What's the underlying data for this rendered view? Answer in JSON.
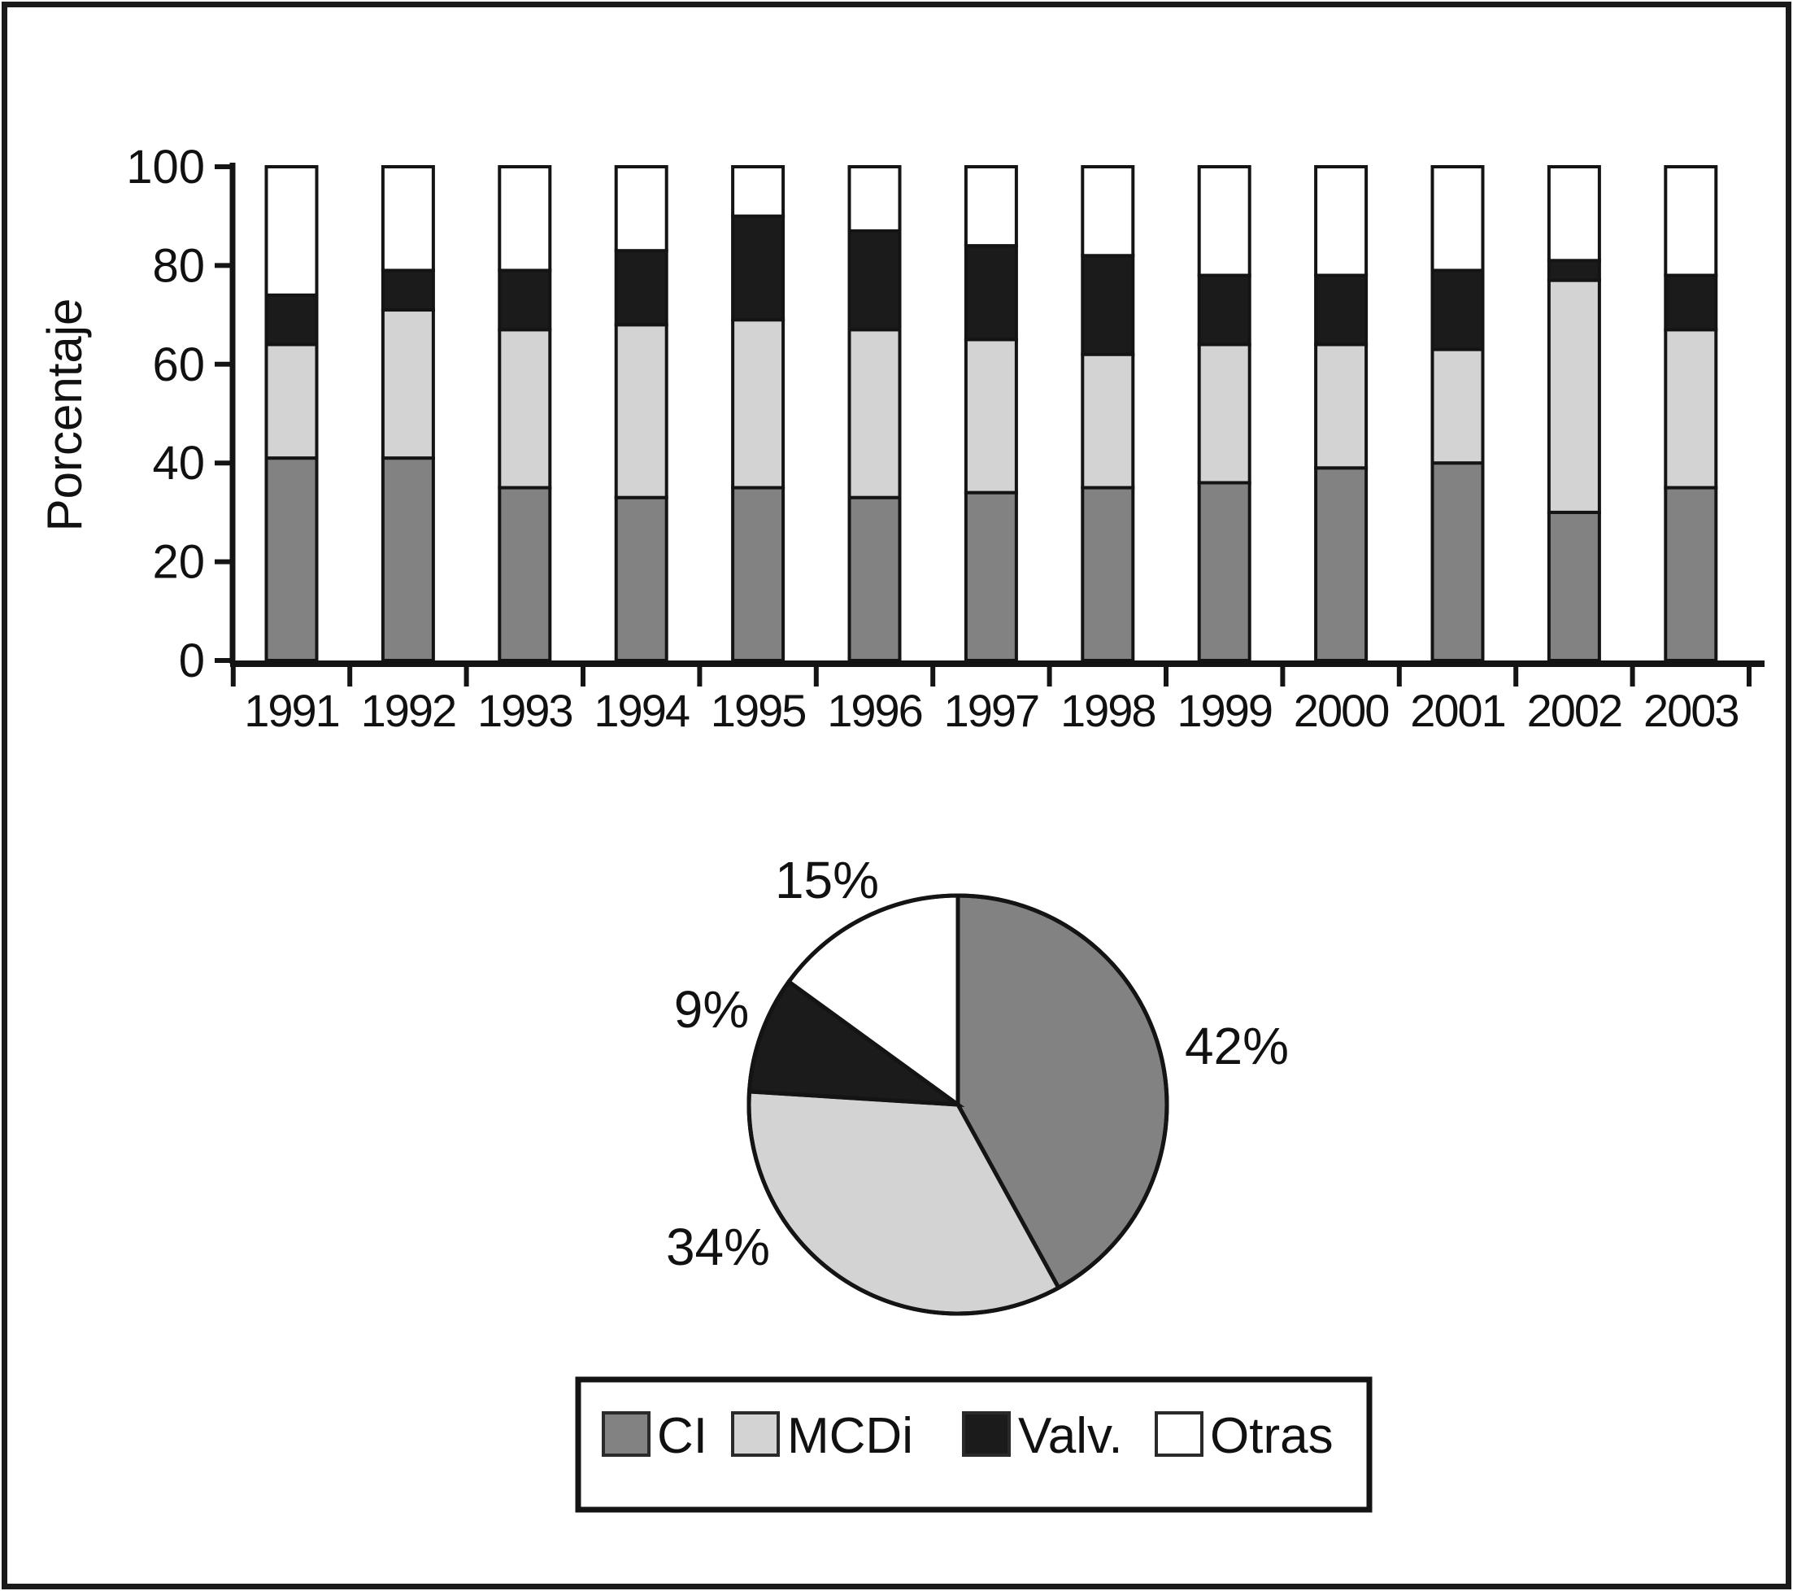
{
  "figure": {
    "background": "#ffffff",
    "border_color": "#1a1a1a",
    "ink_color": "#141414"
  },
  "chart_data": [
    {
      "type": "bar",
      "stacked": true,
      "title": "",
      "xlabel": "",
      "ylabel": "Porcentaje",
      "ylim": [
        0,
        100
      ],
      "y_ticks": [
        0,
        20,
        40,
        60,
        80,
        100
      ],
      "grid": false,
      "categories": [
        "1991",
        "1992",
        "1993",
        "1994",
        "1995",
        "1996",
        "1997",
        "1998",
        "1999",
        "2000",
        "2001",
        "2002",
        "2003"
      ],
      "series": [
        {
          "name": "CI",
          "color": "#828282",
          "values": [
            41,
            41,
            35,
            33,
            35,
            33,
            34,
            35,
            36,
            39,
            40,
            30,
            35
          ]
        },
        {
          "name": "MCDi",
          "color": "#d3d3d3",
          "values": [
            23,
            30,
            32,
            35,
            34,
            34,
            31,
            27,
            28,
            25,
            23,
            47,
            32
          ]
        },
        {
          "name": "Valv.",
          "color": "#1b1b1b",
          "values": [
            10,
            8,
            12,
            15,
            21,
            20,
            19,
            20,
            14,
            14,
            16,
            4,
            11
          ]
        },
        {
          "name": "Otras",
          "color": "#ffffff",
          "values": [
            26,
            21,
            21,
            17,
            10,
            13,
            16,
            18,
            22,
            22,
            21,
            19,
            22
          ]
        }
      ]
    },
    {
      "type": "pie",
      "start_angle_deg": 0,
      "direction": "clockwise",
      "slices": [
        {
          "name": "CI",
          "label": "42%",
          "value": 42,
          "color": "#828282"
        },
        {
          "name": "MCDi",
          "label": "34%",
          "value": 34,
          "color": "#d3d3d3"
        },
        {
          "name": "Valv.",
          "label": "9%",
          "value": 9,
          "color": "#1b1b1b"
        },
        {
          "name": "Otras",
          "label": "15%",
          "value": 15,
          "color": "#ffffff"
        }
      ]
    }
  ],
  "legend": {
    "items": [
      {
        "label": "CI",
        "color": "#828282"
      },
      {
        "label": "MCDi",
        "color": "#d3d3d3"
      },
      {
        "label": "Valv.",
        "color": "#1b1b1b"
      },
      {
        "label": "Otras",
        "color": "#ffffff"
      }
    ]
  }
}
